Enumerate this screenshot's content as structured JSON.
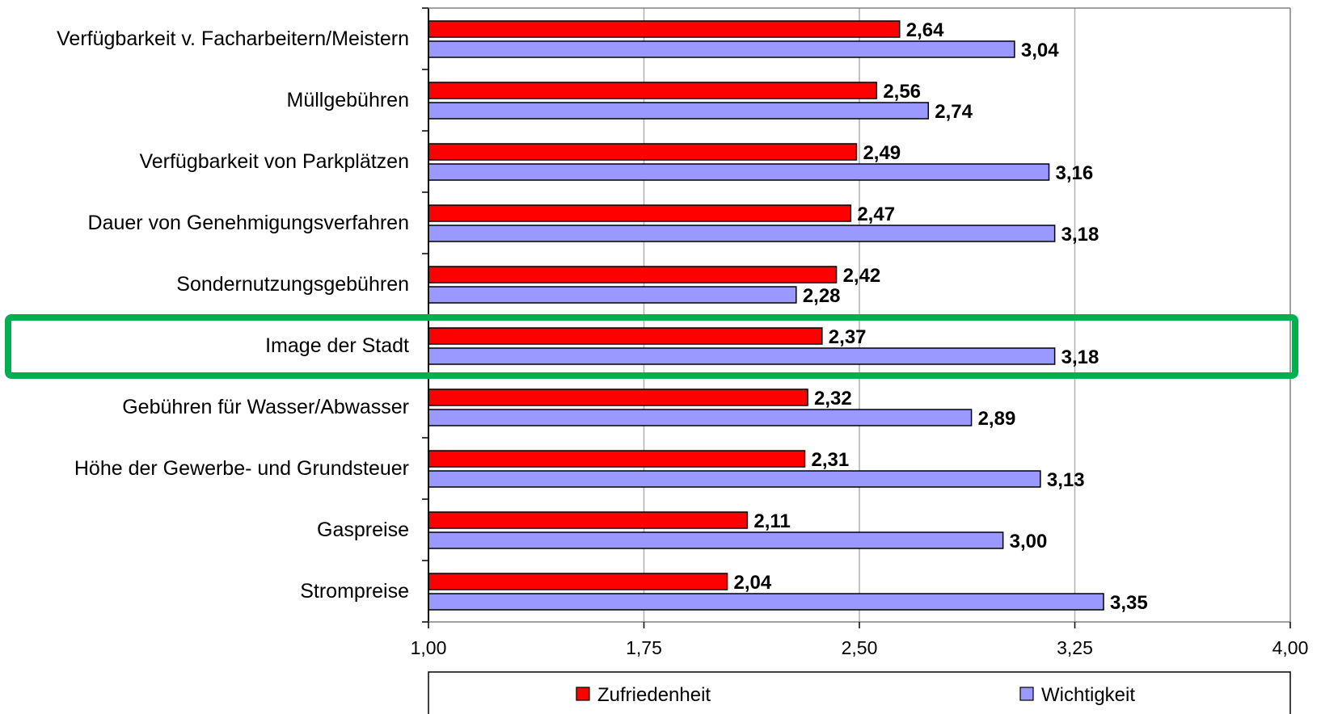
{
  "chart_data": {
    "type": "bar",
    "orientation": "horizontal",
    "categories": [
      "Verfügbarkeit v. Facharbeitern/Meistern",
      "Müllgebühren",
      "Verfügbarkeit von Parkplätzen",
      "Dauer von Genehmigungsverfahren",
      "Sondernutzungsgebühren",
      "Image der Stadt",
      "Gebühren für Wasser/Abwasser",
      "Höhe der Gewerbe- und Grundsteuer",
      "Gaspreise",
      "Strompreise"
    ],
    "series": [
      {
        "name": "Zufriedenheit",
        "color": "#ff0000",
        "values": [
          2.64,
          2.56,
          2.49,
          2.47,
          2.42,
          2.37,
          2.32,
          2.31,
          2.11,
          2.04
        ],
        "labels": [
          "2,64",
          "2,56",
          "2,49",
          "2,47",
          "2,42",
          "2,37",
          "2,32",
          "2,31",
          "2,11",
          "2,04"
        ]
      },
      {
        "name": "Wichtigkeit",
        "color": "#9999ff",
        "values": [
          3.04,
          2.74,
          3.16,
          3.18,
          2.28,
          3.18,
          2.89,
          3.13,
          3.0,
          3.35
        ],
        "labels": [
          "3,04",
          "2,74",
          "3,16",
          "3,18",
          "2,28",
          "3,18",
          "2,89",
          "3,13",
          "3,00",
          "3,35"
        ]
      }
    ],
    "xlim": [
      1.0,
      4.0
    ],
    "xticks": [
      1.0,
      1.75,
      2.5,
      3.25,
      4.0
    ],
    "xtick_labels": [
      "1,00",
      "1,75",
      "2,50",
      "3,25",
      "4,00"
    ],
    "grid": "vertical",
    "legend": "bottom",
    "highlight": {
      "category": "Image der Stadt",
      "color": "#00b050"
    }
  }
}
